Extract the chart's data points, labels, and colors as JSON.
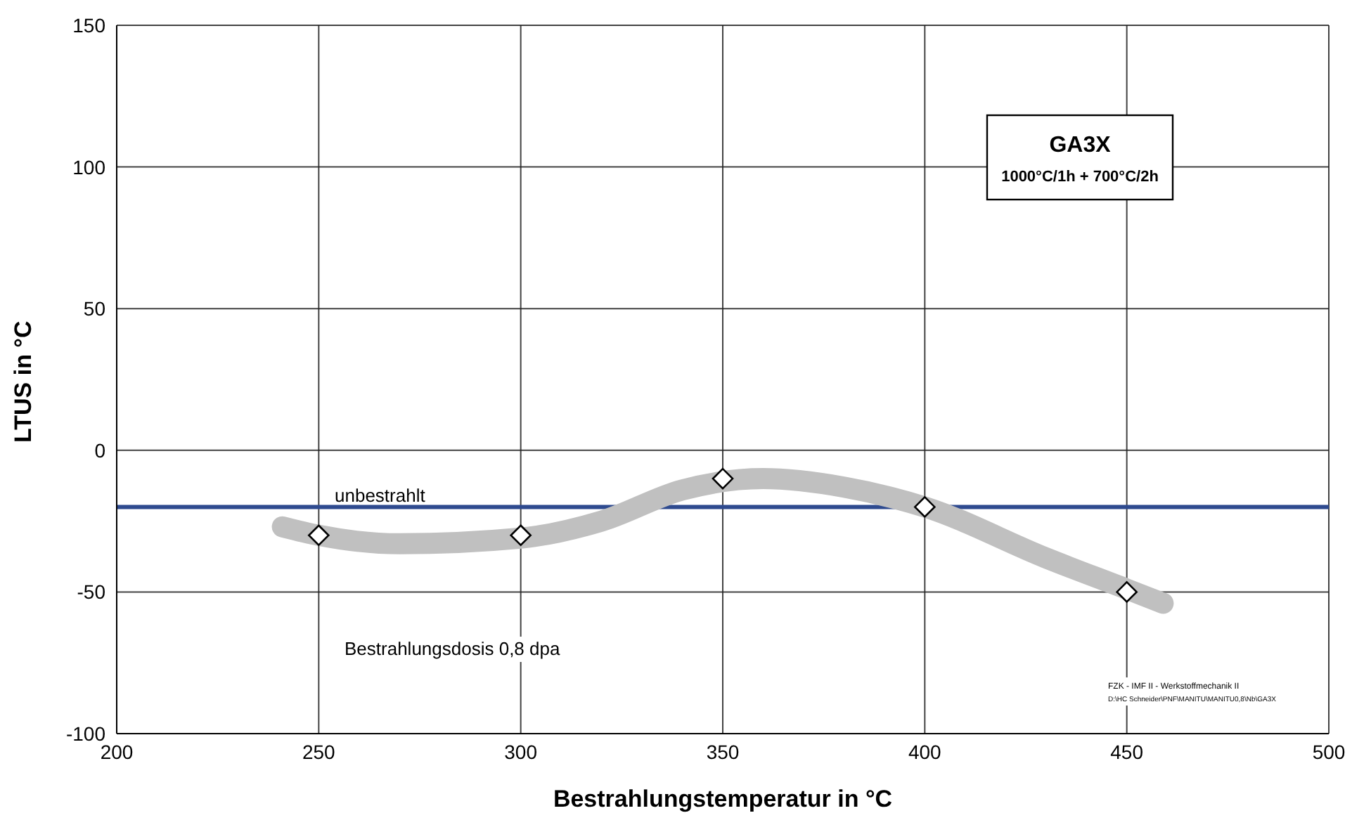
{
  "chart_data": {
    "type": "scatter",
    "xlabel": "Bestrahlungstemperatur in °C",
    "ylabel": "LTUS in °C",
    "xlim": [
      200,
      500
    ],
    "xticks": [
      200,
      250,
      300,
      350,
      400,
      450,
      500
    ],
    "ylim": [
      -100,
      150
    ],
    "yticks": [
      -100,
      -50,
      0,
      50,
      100,
      150
    ],
    "grid": true,
    "series": [
      {
        "type": "line",
        "color": "#c0c0c0",
        "marker": "none",
        "x": [
          241,
          250,
          270,
          300,
          320,
          340,
          360,
          380,
          400,
          430,
          450,
          459
        ],
        "values": [
          -27,
          -30,
          -33,
          -31,
          -25,
          -14,
          -10,
          -13,
          -20,
          -38,
          -49,
          -54
        ]
      },
      {
        "color": "#ffffff",
        "marker": "diamond",
        "x": [
          250,
          300,
          350,
          400,
          450
        ],
        "values": [
          -30,
          -30,
          -10,
          -20,
          -50
        ]
      }
    ],
    "ref_lines": [
      {
        "axis": "y",
        "value": -20,
        "label": "unbestrahlt",
        "color": "#2e4a8f",
        "line_style": "solid"
      }
    ],
    "annotations": [
      "GA3X",
      "1000°C/1h + 700°C/2h",
      "Bestrahlungsdosis 0,8 dpa",
      "FZK - IMF II - Werkstoffmechanik II",
      "D:\\HC Schneider\\PNF\\MANITU\\MANITU0,8\\Nb\\GA3X"
    ]
  }
}
